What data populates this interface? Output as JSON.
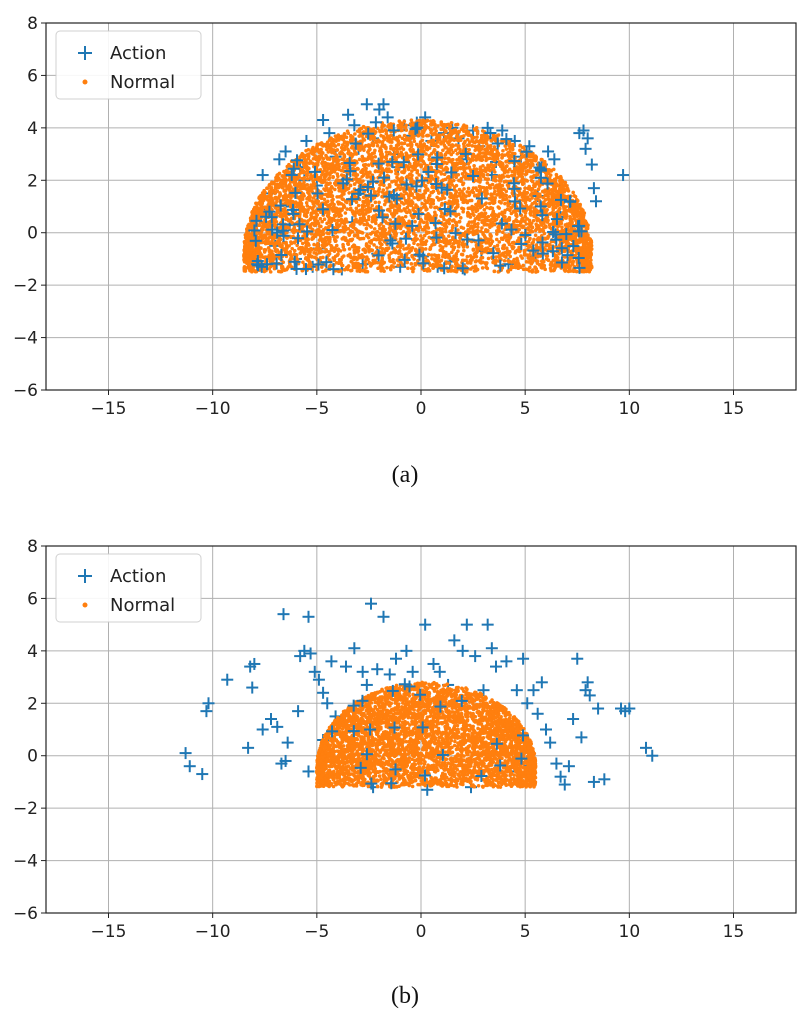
{
  "colors": {
    "action": "#1f77b4",
    "normal": "#ff7f0e"
  },
  "chart_data": [
    {
      "type": "scatter",
      "caption": "(a)",
      "xlim": [
        -18,
        18
      ],
      "ylim": [
        -6,
        8
      ],
      "xticks": [
        -15,
        -10,
        -5,
        0,
        5,
        10,
        15
      ],
      "yticks": [
        -6,
        -4,
        -2,
        0,
        2,
        4,
        6,
        8
      ],
      "xtick_labels": [
        "−15",
        "−10",
        "−5",
        "0",
        "5",
        "10",
        "15"
      ],
      "ytick_labels": [
        "−6",
        "−4",
        "−2",
        "0",
        "2",
        "4",
        "6",
        "8"
      ],
      "grid": true,
      "legend": {
        "placement": "top-left",
        "entries": [
          "Action",
          "Normal"
        ]
      },
      "normal_cloud": {
        "x_range": [
          -8.5,
          8.2
        ],
        "y_range": [
          -1.5,
          4.3
        ],
        "shape": "half-ellipse"
      },
      "series": [
        {
          "name": "Action",
          "marker": "plus",
          "points": [
            [
              -7.6,
              2.2
            ],
            [
              -7.2,
              1.5
            ],
            [
              -7.5,
              0.8
            ],
            [
              -7.0,
              -0.5
            ],
            [
              -6.8,
              2.8
            ],
            [
              -6.5,
              3.1
            ],
            [
              -6.3,
              0.3
            ],
            [
              -6.0,
              -1.0
            ],
            [
              -5.8,
              2.5
            ],
            [
              -5.5,
              3.5
            ],
            [
              -5.2,
              -1.3
            ],
            [
              -5.0,
              1.8
            ],
            [
              -4.7,
              4.3
            ],
            [
              -4.4,
              3.8
            ],
            [
              -4.1,
              2.9
            ],
            [
              -3.8,
              -1.4
            ],
            [
              -3.5,
              4.5
            ],
            [
              -3.2,
              4.1
            ],
            [
              -3.0,
              3.2
            ],
            [
              -2.8,
              -1.2
            ],
            [
              -2.6,
              4.9
            ],
            [
              -2.3,
              3.6
            ],
            [
              -2.0,
              4.7
            ],
            [
              -1.8,
              4.9
            ],
            [
              -1.6,
              4.4
            ],
            [
              -1.3,
              3.0
            ],
            [
              -1.0,
              -1.3
            ],
            [
              -0.8,
              4.1
            ],
            [
              -0.5,
              3.7
            ],
            [
              -0.2,
              4.2
            ],
            [
              0.2,
              4.4
            ],
            [
              0.5,
              3.5
            ],
            [
              0.8,
              -1.3
            ],
            [
              1.1,
              3.8
            ],
            [
              1.5,
              4.0
            ],
            [
              1.8,
              3.6
            ],
            [
              2.1,
              -1.4
            ],
            [
              2.5,
              3.9
            ],
            [
              2.8,
              3.3
            ],
            [
              3.2,
              4.0
            ],
            [
              3.6,
              2.7
            ],
            [
              3.9,
              3.9
            ],
            [
              4.2,
              -1.2
            ],
            [
              4.5,
              3.5
            ],
            [
              4.8,
              2.9
            ],
            [
              5.2,
              3.3
            ],
            [
              5.5,
              -0.9
            ],
            [
              5.8,
              2.6
            ],
            [
              6.1,
              3.1
            ],
            [
              6.4,
              2.8
            ],
            [
              6.8,
              1.8
            ],
            [
              7.0,
              -0.2
            ],
            [
              7.3,
              1.0
            ],
            [
              7.6,
              3.8
            ],
            [
              7.8,
              3.9
            ],
            [
              7.9,
              3.2
            ],
            [
              8.0,
              3.6
            ],
            [
              8.2,
              2.6
            ],
            [
              8.3,
              1.7
            ],
            [
              8.4,
              1.2
            ],
            [
              9.7,
              2.2
            ],
            [
              -6.2,
              1.0
            ],
            [
              -4.9,
              -0.6
            ],
            [
              -3.3,
              0.4
            ],
            [
              -2.1,
              -0.8
            ],
            [
              0.1,
              -0.9
            ],
            [
              1.4,
              -1.1
            ],
            [
              2.9,
              -0.7
            ],
            [
              4.1,
              0.3
            ],
            [
              5.6,
              1.4
            ],
            [
              6.7,
              0.6
            ],
            [
              -5.6,
              2.0
            ],
            [
              3.4,
              2.2
            ],
            [
              -1.1,
              2.5
            ],
            [
              2.2,
              2.8
            ]
          ]
        },
        {
          "name": "Normal",
          "marker": "dot",
          "points": []
        }
      ]
    },
    {
      "type": "scatter",
      "caption": "(b)",
      "xlim": [
        -18,
        18
      ],
      "ylim": [
        -6,
        8
      ],
      "xticks": [
        -15,
        -10,
        -5,
        0,
        5,
        10,
        15
      ],
      "yticks": [
        -6,
        -4,
        -2,
        0,
        2,
        4,
        6,
        8
      ],
      "xtick_labels": [
        "−15",
        "−10",
        "−5",
        "0",
        "5",
        "10",
        "15"
      ],
      "ytick_labels": [
        "−6",
        "−4",
        "−2",
        "0",
        "2",
        "4",
        "6",
        "8"
      ],
      "grid": true,
      "legend": {
        "placement": "top-left",
        "entries": [
          "Action",
          "Normal"
        ]
      },
      "normal_cloud": {
        "x_range": [
          -5.0,
          5.5
        ],
        "y_range": [
          -1.2,
          2.8
        ],
        "shape": "half-ellipse"
      },
      "series": [
        {
          "name": "Action",
          "marker": "plus",
          "points": [
            [
              -11.3,
              0.1
            ],
            [
              -11.1,
              -0.4
            ],
            [
              -10.5,
              -0.7
            ],
            [
              -10.2,
              2.0
            ],
            [
              -10.3,
              1.7
            ],
            [
              -9.3,
              2.9
            ],
            [
              -8.2,
              3.4
            ],
            [
              -8.0,
              3.5
            ],
            [
              -8.1,
              2.6
            ],
            [
              -8.3,
              0.3
            ],
            [
              -7.6,
              1.0
            ],
            [
              -7.2,
              1.4
            ],
            [
              -6.9,
              1.1
            ],
            [
              -6.7,
              -0.3
            ],
            [
              -6.5,
              -0.2
            ],
            [
              -6.4,
              0.5
            ],
            [
              -6.6,
              5.4
            ],
            [
              -5.9,
              1.7
            ],
            [
              -5.8,
              3.8
            ],
            [
              -5.6,
              4.0
            ],
            [
              -5.4,
              5.3
            ],
            [
              -5.3,
              3.9
            ],
            [
              -5.1,
              3.2
            ],
            [
              -4.9,
              2.9
            ],
            [
              -4.7,
              2.4
            ],
            [
              -4.5,
              2.0
            ],
            [
              -4.3,
              3.6
            ],
            [
              -4.1,
              1.5
            ],
            [
              -3.6,
              3.4
            ],
            [
              -3.2,
              4.1
            ],
            [
              -2.8,
              3.2
            ],
            [
              -2.6,
              2.7
            ],
            [
              -2.4,
              5.8
            ],
            [
              -2.1,
              3.3
            ],
            [
              -1.8,
              5.3
            ],
            [
              -1.5,
              3.1
            ],
            [
              -1.2,
              3.7
            ],
            [
              -0.7,
              4.0
            ],
            [
              -0.4,
              3.2
            ],
            [
              0.2,
              5.0
            ],
            [
              0.6,
              3.5
            ],
            [
              0.9,
              3.2
            ],
            [
              1.3,
              2.7
            ],
            [
              1.6,
              4.4
            ],
            [
              2.0,
              4.0
            ],
            [
              2.2,
              5.0
            ],
            [
              2.6,
              3.8
            ],
            [
              3.0,
              2.5
            ],
            [
              3.2,
              5.0
            ],
            [
              3.4,
              4.1
            ],
            [
              3.6,
              3.4
            ],
            [
              4.1,
              3.6
            ],
            [
              4.6,
              2.5
            ],
            [
              4.9,
              3.7
            ],
            [
              5.1,
              2.0
            ],
            [
              5.4,
              2.5
            ],
            [
              5.6,
              1.6
            ],
            [
              5.8,
              2.8
            ],
            [
              6.0,
              1.0
            ],
            [
              6.2,
              0.5
            ],
            [
              6.5,
              -0.3
            ],
            [
              6.7,
              -0.8
            ],
            [
              6.9,
              -1.1
            ],
            [
              7.1,
              -0.4
            ],
            [
              7.3,
              1.4
            ],
            [
              7.5,
              3.7
            ],
            [
              7.7,
              0.7
            ],
            [
              7.9,
              2.5
            ],
            [
              8.0,
              2.8
            ],
            [
              8.1,
              2.3
            ],
            [
              8.3,
              -1.0
            ],
            [
              8.8,
              -0.9
            ],
            [
              8.5,
              1.8
            ],
            [
              9.6,
              1.8
            ],
            [
              9.8,
              1.7
            ],
            [
              10.0,
              1.8
            ],
            [
              10.8,
              0.3
            ],
            [
              11.1,
              0.0
            ],
            [
              5.2,
              -0.4
            ],
            [
              -5.4,
              -0.6
            ],
            [
              -4.7,
              0.6
            ],
            [
              4.3,
              -0.6
            ],
            [
              0.3,
              -1.3
            ],
            [
              -2.3,
              -1.2
            ],
            [
              2.4,
              -1.2
            ]
          ]
        },
        {
          "name": "Normal",
          "marker": "dot",
          "points": []
        }
      ]
    }
  ]
}
